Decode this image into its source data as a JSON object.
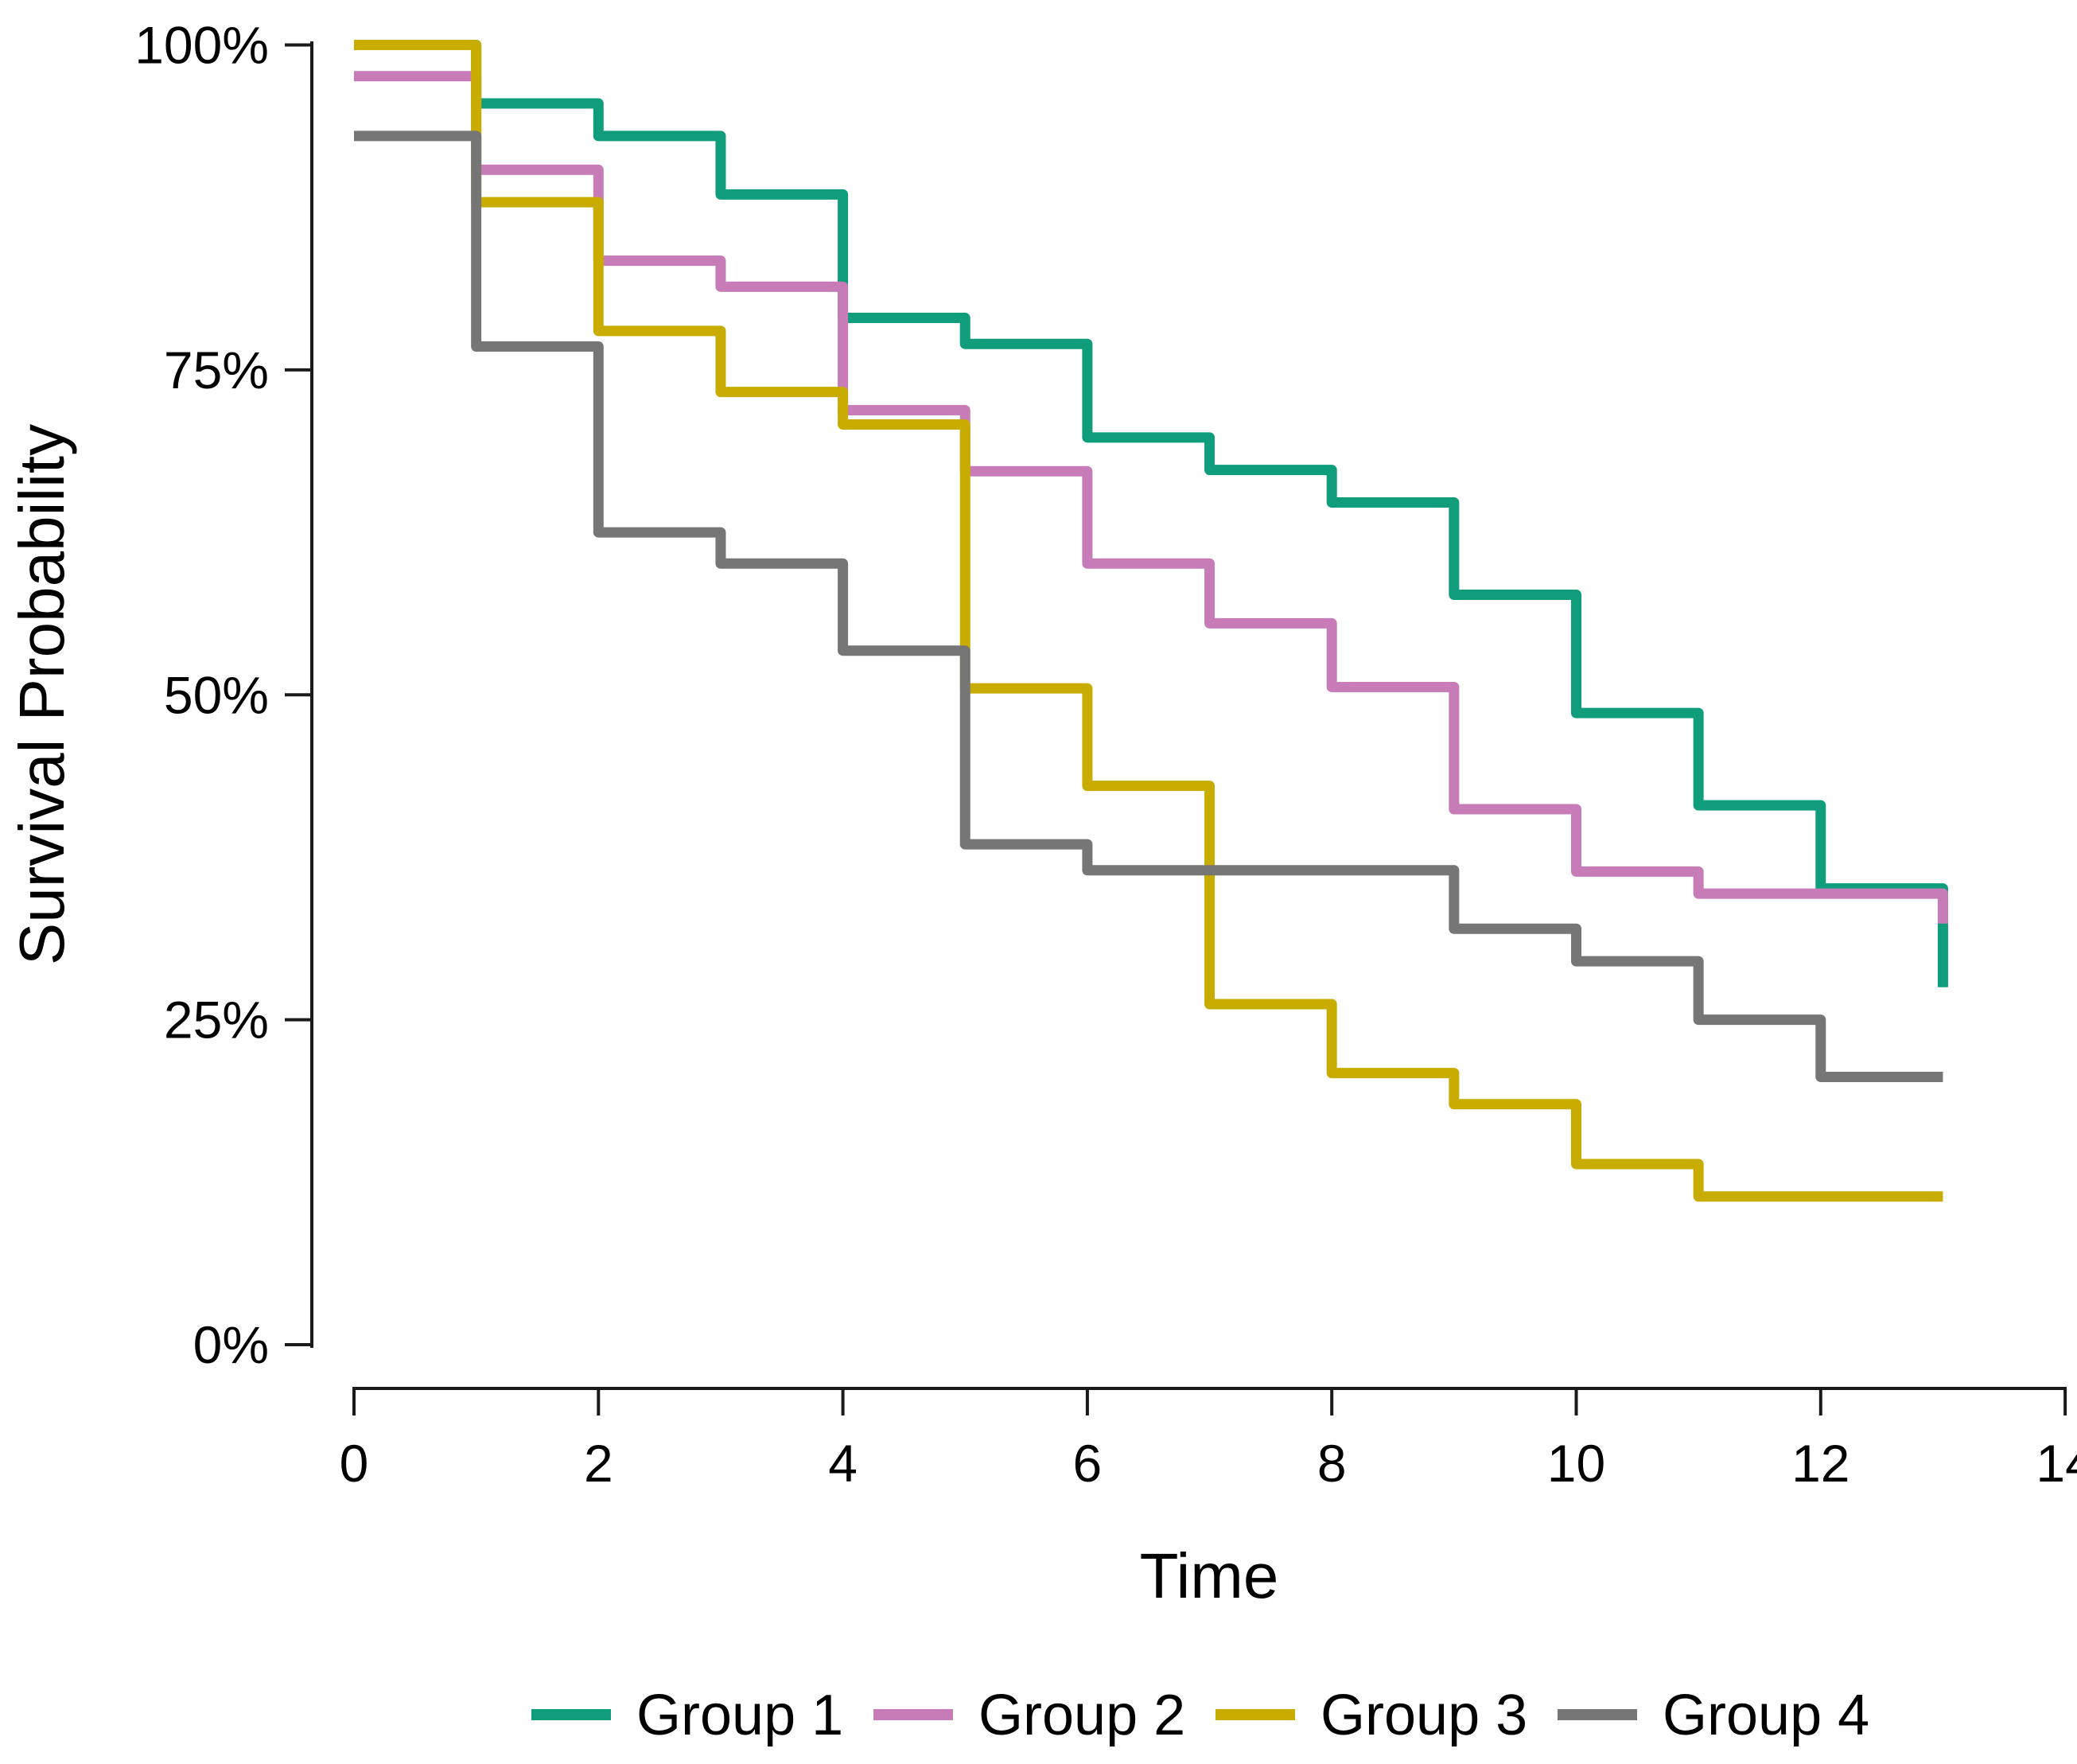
{
  "chart_data": {
    "type": "line",
    "subtype": "kaplan-meier-step",
    "title": "",
    "xlabel": "Time",
    "ylabel": "Survival Probability",
    "xlim": [
      0,
      14
    ],
    "ylim": [
      0,
      100
    ],
    "grid": "off",
    "legend_position": "bottom",
    "x_axis": {
      "ticks": [
        {
          "value": 0,
          "label": "0"
        },
        {
          "value": 2,
          "label": "2"
        },
        {
          "value": 4,
          "label": "4"
        },
        {
          "value": 6,
          "label": "6"
        },
        {
          "value": 8,
          "label": "8"
        },
        {
          "value": 10,
          "label": "10"
        },
        {
          "value": 12,
          "label": "12"
        },
        {
          "value": 14,
          "label": "14"
        }
      ]
    },
    "y_axis": {
      "ticks": [
        {
          "value": 100,
          "label": "100%"
        },
        {
          "value": 75,
          "label": "75%"
        },
        {
          "value": 50,
          "label": "50%"
        },
        {
          "value": 25,
          "label": "25%"
        },
        {
          "value": 0,
          "label": "0%"
        }
      ]
    },
    "step_times": [
      0,
      1,
      2,
      3,
      4,
      5,
      6,
      7,
      8,
      9,
      10,
      11,
      12
    ],
    "end_time": 13,
    "series": [
      {
        "name": "Group 1",
        "color": "#0f9d7c",
        "values_pct": [
          100,
          95.5,
          93,
          88.5,
          79,
          77,
          69.8,
          67.3,
          64.8,
          57.7,
          48.6,
          41.5,
          35.1
        ],
        "final_value_pct": 27.5
      },
      {
        "name": "Group 2",
        "color": "#c77cb7",
        "values_pct": [
          97.6,
          90.4,
          83.4,
          81.4,
          71.9,
          67.2,
          60.1,
          55.5,
          50.6,
          41.2,
          36.4,
          34.7,
          34.7
        ],
        "final_value_pct": 32.4
      },
      {
        "name": "Group 3",
        "color": "#c8ac00",
        "values_pct": [
          100,
          87.9,
          78,
          73.3,
          70.8,
          50.5,
          43,
          26.2,
          20.9,
          18.5,
          13.9,
          11.4,
          11.4
        ],
        "final_value_pct": 11.4
      },
      {
        "name": "Group 4",
        "color": "#767676",
        "values_pct": [
          93,
          76.8,
          62.5,
          60.1,
          53.4,
          38.5,
          36.5,
          36.5,
          36.5,
          32,
          29.5,
          25,
          20.6
        ],
        "final_value_pct": 20.6
      }
    ],
    "axis_color": "#1a1a1a"
  }
}
